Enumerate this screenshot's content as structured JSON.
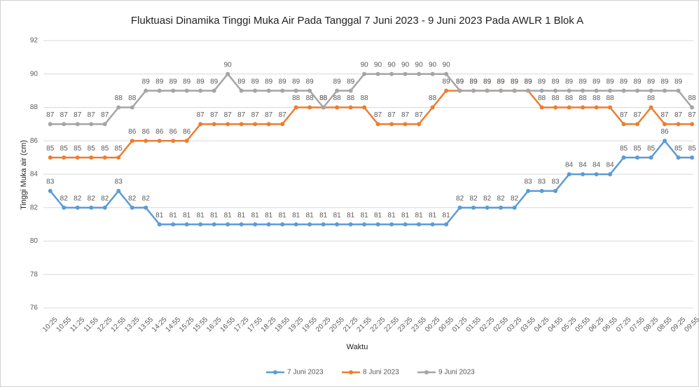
{
  "chart_data": {
    "type": "line",
    "title": "Fluktuasi Dinamika Tinggi Muka Air Pada Tanggal 7 Juni 2023 - 9 Juni 2023 Pada AWLR 1 Blok A",
    "x_label": "Waktu",
    "y_label": "Tinggi Muka air (cm)",
    "categories": [
      "10:25",
      "10:55",
      "11:25",
      "11:55",
      "12:25",
      "12:55",
      "13:25",
      "13:55",
      "14:25",
      "14:55",
      "15:25",
      "15:55",
      "16:25",
      "16:55",
      "17:25",
      "17:55",
      "18:25",
      "18:55",
      "19:25",
      "19:55",
      "20:25",
      "20:55",
      "21:25",
      "21:55",
      "22:25",
      "22:55",
      "23:25",
      "23:55",
      "00:25",
      "00:55",
      "01:25",
      "01:55",
      "02:25",
      "02:55",
      "03:25",
      "03:55",
      "04:25",
      "04:55",
      "05:25",
      "05:55",
      "06:25",
      "06:55",
      "07:25",
      "07:55",
      "08:25",
      "08:55",
      "09:25",
      "09:55"
    ],
    "series": [
      {
        "name": "7 Juni 2023",
        "color": "#5b9bd5",
        "values": [
          83,
          82,
          82,
          82,
          82,
          83,
          82,
          82,
          81,
          81,
          81,
          81,
          81,
          81,
          81,
          81,
          81,
          81,
          81,
          81,
          81,
          81,
          81,
          81,
          81,
          81,
          81,
          81,
          81,
          81,
          82,
          82,
          82,
          82,
          82,
          83,
          83,
          83,
          84,
          84,
          84,
          84,
          85,
          85,
          85,
          86,
          85,
          85
        ]
      },
      {
        "name": "8 Juni 2023",
        "color": "#ed7d31",
        "values": [
          85,
          85,
          85,
          85,
          85,
          85,
          86,
          86,
          86,
          86,
          86,
          87,
          87,
          87,
          87,
          87,
          87,
          87,
          88,
          88,
          88,
          88,
          88,
          88,
          87,
          87,
          87,
          87,
          88,
          89,
          89,
          89,
          89,
          89,
          89,
          89,
          88,
          88,
          88,
          88,
          88,
          88,
          87,
          87,
          88,
          87,
          87,
          87
        ]
      },
      {
        "name": "9 Juni 2023",
        "color": "#a5a5a5",
        "values": [
          87,
          87,
          87,
          87,
          87,
          88,
          88,
          89,
          89,
          89,
          89,
          89,
          89,
          90,
          89,
          89,
          89,
          89,
          89,
          89,
          88,
          89,
          89,
          90,
          90,
          90,
          90,
          90,
          90,
          90,
          89,
          89,
          89,
          89,
          89,
          89,
          89,
          89,
          89,
          89,
          89,
          89,
          89,
          89,
          89,
          89,
          89,
          88
        ]
      }
    ],
    "ylim": [
      76,
      92
    ],
    "yticks": [
      76,
      78,
      80,
      82,
      84,
      86,
      88,
      90,
      92
    ],
    "grid": true
  }
}
